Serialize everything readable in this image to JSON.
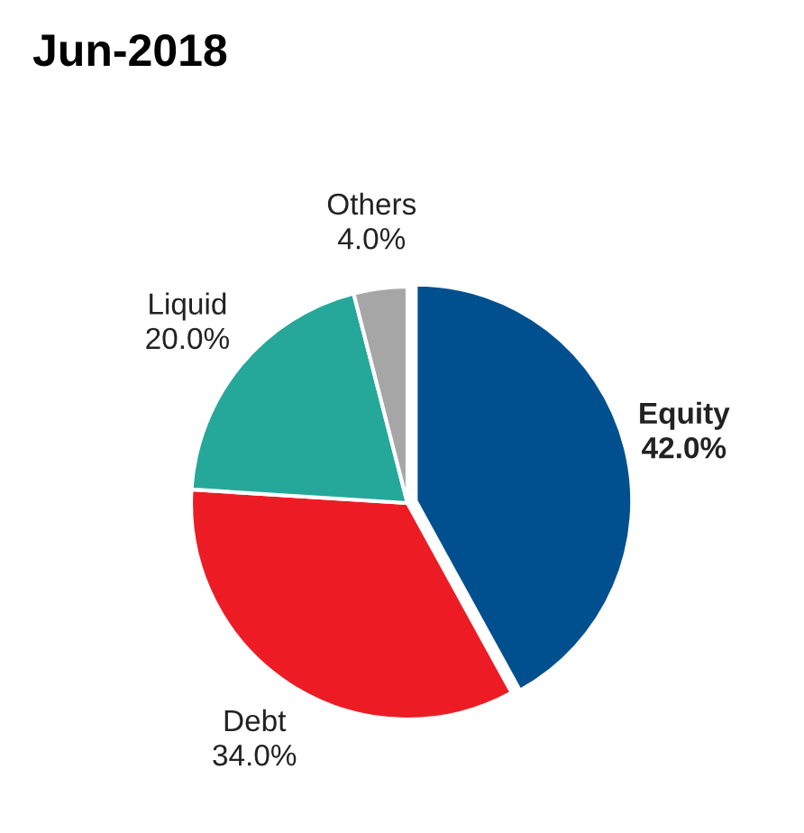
{
  "chart_data": {
    "type": "pie",
    "title": "Jun-2018",
    "categories": [
      "Equity",
      "Debt",
      "Liquid",
      "Others"
    ],
    "values": [
      42.0,
      34.0,
      20.0,
      4.0
    ],
    "value_labels": [
      "42.0%",
      "34.0%",
      "20.0%",
      "4.0%"
    ],
    "colors": [
      "#00508f",
      "#ed1c24",
      "#25a899",
      "#a6a6a6"
    ],
    "legend": false
  }
}
